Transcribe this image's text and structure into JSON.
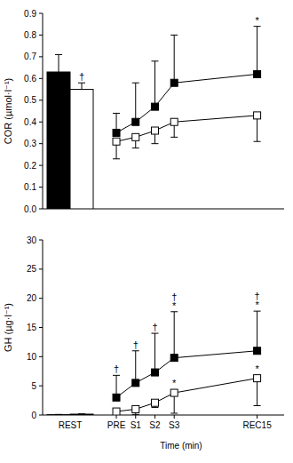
{
  "chart_data": [
    {
      "type": "line",
      "y_label": "COR (µmol·l⁻¹)",
      "x": [
        0,
        1,
        2,
        3,
        7.3
      ],
      "xlim": [
        -0.6,
        8.7
      ],
      "ylim": [
        0,
        0.9
      ],
      "yticks": [
        {
          "value": 0,
          "label": "0.0"
        },
        0.1,
        0.2,
        0.3,
        0.4,
        0.5,
        0.6,
        0.7,
        0.8,
        0.9
      ],
      "tick_labels": "y",
      "series": [
        {
          "color": "#000000",
          "marker": "filled-square",
          "values": [
            0.35,
            0.4,
            0.47,
            0.58,
            0.62
          ],
          "errors_up": [
            0.09,
            0.18,
            0.21,
            0.22,
            0.22
          ],
          "symbols": [
            [],
            [],
            [],
            [],
            [
              "*"
            ]
          ],
          "rest_value": 0.63,
          "rest_error_up": 0.08,
          "rest_symbols": []
        },
        {
          "color": "#000000",
          "marker": "open-square",
          "values": [
            0.31,
            0.33,
            0.36,
            0.4,
            0.43
          ],
          "errors_down": [
            0.08,
            0.05,
            0.06,
            0.07,
            0.12
          ],
          "symbols": [
            [],
            [],
            [],
            [],
            []
          ],
          "rest_value": 0.55,
          "rest_error_up": 0.03,
          "rest_symbols": [
            "†"
          ]
        }
      ]
    },
    {
      "type": "line",
      "y_label": "GH (µg·l⁻¹)",
      "x_label": "Time (min)",
      "rest_label": "REST",
      "x": [
        0,
        1,
        2,
        3,
        7.3
      ],
      "xlim": [
        -0.6,
        8.7
      ],
      "xticks": [
        {
          "value": 0,
          "label": "PRE"
        },
        {
          "value": 1,
          "label": "S1"
        },
        {
          "value": 2,
          "label": "S2"
        },
        {
          "value": 3,
          "label": "S3"
        },
        {
          "value": 7.3,
          "label": "REC15"
        }
      ],
      "ylim": [
        0,
        30
      ],
      "yticks": [
        0,
        5,
        10,
        15,
        20,
        25,
        30
      ],
      "series": [
        {
          "color": "#000000",
          "marker": "filled-square",
          "values": [
            3.0,
            5.5,
            7.3,
            9.8,
            11.0
          ],
          "errors_up": [
            3.8,
            5.5,
            6.7,
            7.9,
            6.8
          ],
          "symbols": [
            [
              "†"
            ],
            [
              "†"
            ],
            [
              "†"
            ],
            [
              "†",
              "*"
            ],
            [
              "†",
              "*"
            ]
          ],
          "rest_value": 0.05,
          "rest_error_up": 0.05,
          "rest_symbols": []
        },
        {
          "color": "#000000",
          "marker": "open-square",
          "values": [
            0.6,
            1.0,
            2.1,
            3.8,
            6.3
          ],
          "errors_down": [
            0.6,
            0.9,
            0.8,
            3.5,
            4.7
          ],
          "symbols": [
            [],
            [],
            [],
            [
              "*"
            ],
            [
              "*"
            ]
          ],
          "rest_value": 0.15,
          "rest_error_up": 0.05,
          "rest_symbols": []
        }
      ]
    }
  ]
}
